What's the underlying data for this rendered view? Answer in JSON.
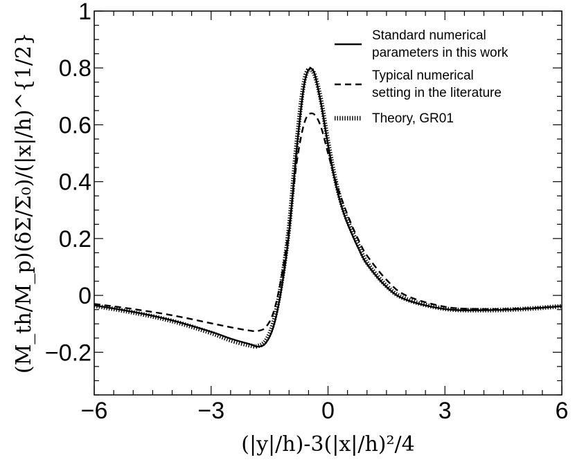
{
  "chart_data": {
    "type": "line",
    "xlabel": "(|y|/h)-3(|x|/h)²/4",
    "ylabel": "(M_th/M_p)(δΣ/Σ₀)/(|x|/h)^{1/2}",
    "xlim": [
      -6,
      6
    ],
    "ylim": [
      -0.35,
      1.0
    ],
    "x_ticks": [
      "−6",
      "−3",
      "0",
      "3",
      "6"
    ],
    "x_tick_values": [
      -6,
      -3,
      0,
      3,
      6
    ],
    "y_ticks": [
      "−0.2",
      "0",
      "0.2",
      "0.4",
      "0.6",
      "0.8",
      "1"
    ],
    "y_tick_values": [
      -0.2,
      0,
      0.2,
      0.4,
      0.6,
      0.8,
      1.0
    ],
    "grid": false,
    "legend_position": "top-right",
    "series": [
      {
        "name": "Standard numerical parameters in this work",
        "legend_lines": [
          "Standard numerical",
          "parameters in this work"
        ],
        "style": "solid",
        "x": [
          -6,
          -5,
          -4,
          -3,
          -2.5,
          -2,
          -1.8,
          -1.6,
          -1.4,
          -1.2,
          -1.0,
          -0.8,
          -0.6,
          -0.4,
          -0.2,
          0,
          0.2,
          0.4,
          0.6,
          0.8,
          1.0,
          1.5,
          2,
          3,
          4,
          5,
          6
        ],
        "values": [
          -0.035,
          -0.058,
          -0.088,
          -0.128,
          -0.152,
          -0.172,
          -0.18,
          -0.168,
          -0.11,
          0.02,
          0.22,
          0.52,
          0.75,
          0.795,
          0.69,
          0.53,
          0.39,
          0.29,
          0.22,
          0.16,
          0.11,
          0.03,
          -0.015,
          -0.048,
          -0.052,
          -0.048,
          -0.038
        ]
      },
      {
        "name": "Typical numerical setting in the literature",
        "legend_lines": [
          "Typical numerical",
          "setting in the literature"
        ],
        "style": "dashed",
        "x": [
          -6,
          -5,
          -4,
          -3,
          -2.5,
          -2,
          -1.8,
          -1.6,
          -1.4,
          -1.2,
          -1.0,
          -0.8,
          -0.6,
          -0.4,
          -0.2,
          0,
          0.2,
          0.4,
          0.6,
          0.8,
          1.0,
          1.5,
          2,
          3,
          4,
          5,
          6
        ],
        "values": [
          -0.03,
          -0.048,
          -0.07,
          -0.098,
          -0.112,
          -0.124,
          -0.125,
          -0.112,
          -0.06,
          0.06,
          0.24,
          0.47,
          0.61,
          0.64,
          0.6,
          0.5,
          0.4,
          0.32,
          0.25,
          0.19,
          0.14,
          0.055,
          0.0,
          -0.04,
          -0.048,
          -0.046,
          -0.038
        ]
      },
      {
        "name": "Theory, GR01",
        "legend_lines": [
          "Theory, GR01"
        ],
        "style": "dotted",
        "x": [
          -6,
          -5,
          -4,
          -3,
          -2.5,
          -2,
          -1.8,
          -1.6,
          -1.4,
          -1.2,
          -1.0,
          -0.8,
          -0.6,
          -0.4,
          -0.2,
          0,
          0.2,
          0.4,
          0.6,
          0.8,
          1.0,
          1.5,
          2,
          3,
          4,
          5,
          6
        ],
        "values": [
          -0.036,
          -0.06,
          -0.09,
          -0.132,
          -0.158,
          -0.176,
          -0.178,
          -0.16,
          -0.095,
          0.04,
          0.24,
          0.54,
          0.76,
          0.79,
          0.7,
          0.54,
          0.4,
          0.3,
          0.23,
          0.17,
          0.115,
          0.033,
          -0.013,
          -0.047,
          -0.052,
          -0.048,
          -0.038
        ]
      }
    ]
  }
}
